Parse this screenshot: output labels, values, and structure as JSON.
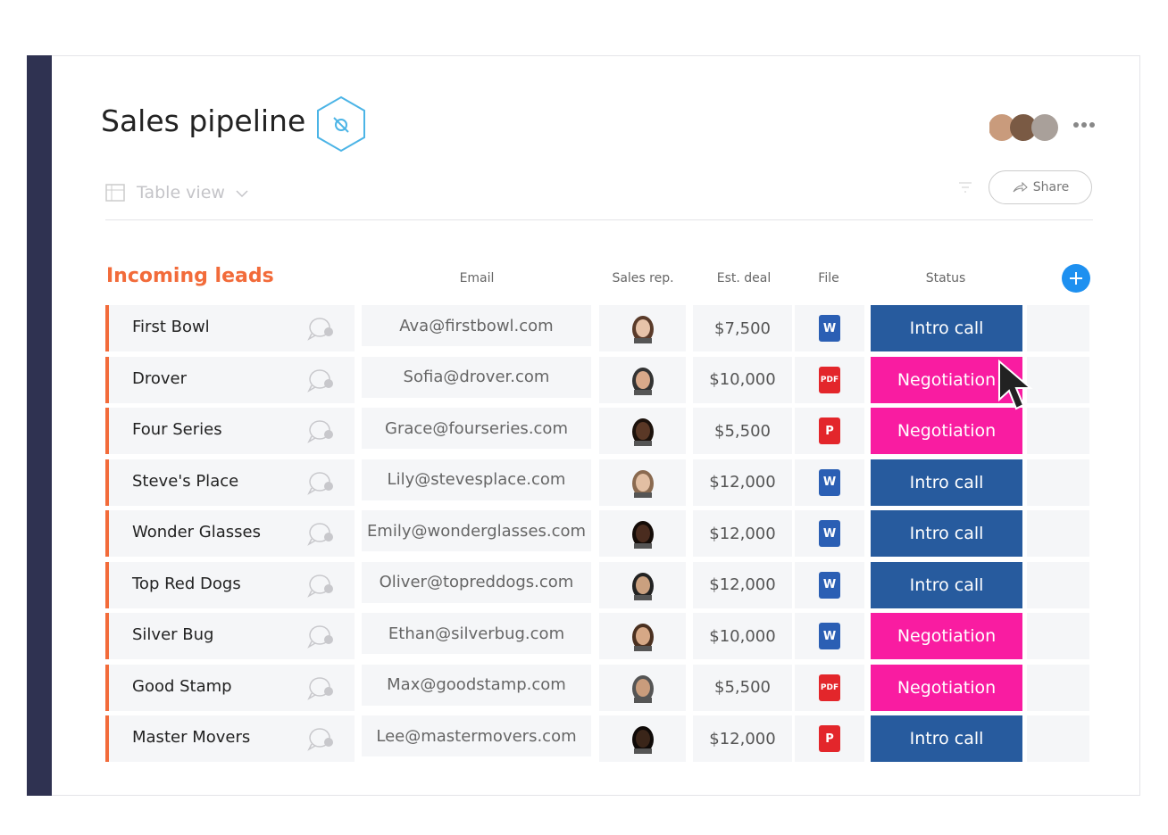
{
  "header": {
    "title": "Sales pipeline",
    "view": "Table view",
    "share": "Share"
  },
  "table": {
    "group": "Incoming leads",
    "columns": [
      "Email",
      "Sales rep.",
      "Est. deal",
      "File",
      "Status"
    ],
    "rows": [
      {
        "name": "First Bowl",
        "email": "Ava@firstbowl.com",
        "deal": "$7,500",
        "file": "W",
        "file_color": "#2b5fb4",
        "status": "Intro call",
        "status_color": "#275b9e"
      },
      {
        "name": "Drover",
        "email": "Sofia@drover.com",
        "deal": "$10,000",
        "file": "PDF",
        "file_color": "#e3262b",
        "status": "Negotiation",
        "status_color": "#f91ca1"
      },
      {
        "name": "Four Series",
        "email": "Grace@fourseries.com",
        "deal": "$5,500",
        "file": "P",
        "file_color": "#e3262b",
        "status": "Negotiation",
        "status_color": "#f91ca1"
      },
      {
        "name": "Steve's Place",
        "email": "Lily@stevesplace.com",
        "deal": "$12,000",
        "file": "W",
        "file_color": "#2b5fb4",
        "status": "Intro call",
        "status_color": "#275b9e"
      },
      {
        "name": "Wonder Glasses",
        "email": "Emily@wonderglasses.com",
        "deal": "$12,000",
        "file": "W",
        "file_color": "#2b5fb4",
        "status": "Intro call",
        "status_color": "#275b9e"
      },
      {
        "name": "Top Red Dogs",
        "email": "Oliver@topreddogs.com",
        "deal": "$12,000",
        "file": "W",
        "file_color": "#2b5fb4",
        "status": "Intro call",
        "status_color": "#275b9e"
      },
      {
        "name": "Silver Bug",
        "email": "Ethan@silverbug.com",
        "deal": "$10,000",
        "file": "W",
        "file_color": "#2b5fb4",
        "status": "Negotiation",
        "status_color": "#f91ca1"
      },
      {
        "name": "Good Stamp",
        "email": "Max@goodstamp.com",
        "deal": "$5,500",
        "file": "PDF",
        "file_color": "#e3262b",
        "status": "Negotiation",
        "status_color": "#f91ca1"
      },
      {
        "name": "Master Movers",
        "email": "Lee@mastermovers.com",
        "deal": "$12,000",
        "file": "P",
        "file_color": "#e3262b",
        "status": "Intro call",
        "status_color": "#275b9e"
      }
    ]
  }
}
